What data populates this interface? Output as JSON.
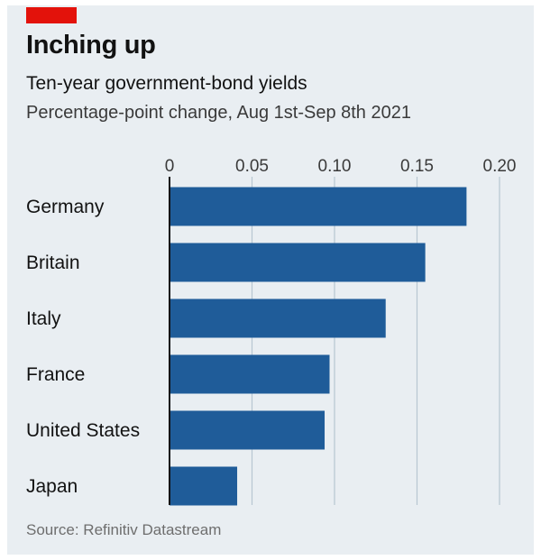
{
  "header": {
    "title": "Inching up",
    "subtitle": "Ten-year government-bond yields",
    "description": "Percentage-point change, Aug 1st-Sep 8th 2021"
  },
  "footer": {
    "source": "Source: Refinitiv Datastream"
  },
  "colors": {
    "bar": "#1f5c99",
    "accent": "#e3120b",
    "background": "#e9eef2",
    "grid": "#b7c6d2"
  },
  "chart_data": {
    "type": "bar",
    "orientation": "horizontal",
    "title": "Inching up",
    "subtitle": "Ten-year government-bond yields",
    "xlabel": "Percentage-point change, Aug 1st-Sep 8th 2021",
    "categories": [
      "Germany",
      "Britain",
      "Italy",
      "France",
      "United States",
      "Japan"
    ],
    "values": [
      0.18,
      0.155,
      0.131,
      0.097,
      0.094,
      0.041
    ],
    "xlim": [
      0,
      0.2
    ],
    "xticks": [
      0,
      0.05,
      0.1,
      0.15,
      0.2
    ],
    "xtick_labels": [
      "0",
      "0.05",
      "0.10",
      "0.15",
      "0.20"
    ],
    "grid": true,
    "legend": "none"
  }
}
